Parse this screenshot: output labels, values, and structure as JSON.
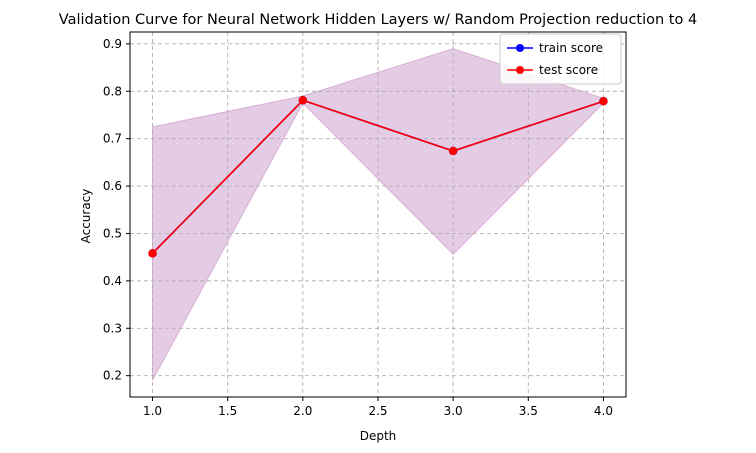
{
  "chart_data": {
    "type": "line",
    "title": "Validation Curve for Neural Network Hidden Layers w/ Random Projection reduction to 4",
    "xlabel": "Depth",
    "ylabel": "Accuracy",
    "x": [
      1.0,
      2.0,
      3.0,
      4.0
    ],
    "xlim": [
      0.85,
      4.15
    ],
    "ylim": [
      0.155,
      0.925
    ],
    "xticks": [
      "1.0",
      "1.5",
      "2.0",
      "2.5",
      "3.0",
      "3.5",
      "4.0"
    ],
    "yticks": [
      "0.2",
      "0.3",
      "0.4",
      "0.5",
      "0.6",
      "0.7",
      "0.8",
      "0.9"
    ],
    "grid": true,
    "legend_position": "top-right",
    "series": [
      {
        "name": "train score",
        "color": "#0000ff",
        "marker": "circle",
        "values": [
          0.458,
          0.781,
          0.674,
          0.779
        ]
      },
      {
        "name": "test score",
        "color": "#ff0000",
        "marker": "circle",
        "values": [
          0.458,
          0.781,
          0.674,
          0.779
        ],
        "band_color": "#bf7fbf",
        "band_lower": [
          0.19,
          0.775,
          0.456,
          0.775
        ],
        "band_upper": [
          0.725,
          0.79,
          0.89,
          0.785
        ]
      }
    ]
  }
}
